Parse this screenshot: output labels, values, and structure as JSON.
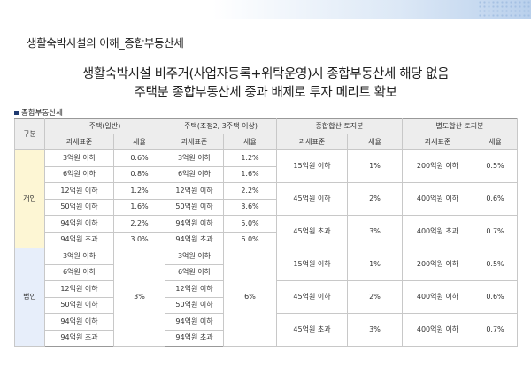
{
  "page_title": "생활숙박시설의 이해_종합부동산세",
  "headline": {
    "line1": "생활숙박시설 비주거(사업자등록+위탁운영)시 종합부동산세 해당 없음",
    "line2": "주택분 종합부동산세 중과 배제로 투자 메리트 확보"
  },
  "section_label": "종합부동산세",
  "colors": {
    "individual_group": "#fdf6d4",
    "corporate_group": "#e7eefa",
    "header_bg": "#ededed",
    "bullet": "#1f3a70"
  },
  "table": {
    "group_header": "구분",
    "col_groups": [
      "주택(일반)",
      "주택(조정2, 3주택 이상)",
      "종합합산 토지분",
      "별도합산 토지분"
    ],
    "sub_headers": {
      "h_base": "과세표준",
      "h_rate": "세율",
      "h2_base": "과세표준",
      "h2_rate": "세율",
      "land_base": "과세표준",
      "land_rate": "세율",
      "sep_base": "과세표준",
      "sep_rate": "세율"
    },
    "individual": {
      "label": "개인",
      "house_general": [
        {
          "base": "3억원 이하",
          "rate": "0.6%"
        },
        {
          "base": "6억원 이하",
          "rate": "0.8%"
        },
        {
          "base": "12억원 이하",
          "rate": "1.2%"
        },
        {
          "base": "50억원 이하",
          "rate": "1.6%"
        },
        {
          "base": "94억원 이하",
          "rate": "2.2%"
        },
        {
          "base": "94억원 초과",
          "rate": "3.0%"
        }
      ],
      "house_multi": [
        {
          "base": "3억원 이하",
          "rate": "1.2%"
        },
        {
          "base": "6억원 이하",
          "rate": "1.6%"
        },
        {
          "base": "12억원 이하",
          "rate": "2.2%"
        },
        {
          "base": "50억원 이하",
          "rate": "3.6%"
        },
        {
          "base": "94억원 이하",
          "rate": "5.0%"
        },
        {
          "base": "94억원 초과",
          "rate": "6.0%"
        }
      ],
      "land_comprehensive": [
        {
          "base": "15억원 이하",
          "rate": "1%"
        },
        {
          "base": "45억원 이하",
          "rate": "2%"
        },
        {
          "base": "45억원 초과",
          "rate": "3%"
        }
      ],
      "land_separate": [
        {
          "base": "200억원 이하",
          "rate": "0.5%"
        },
        {
          "base": "400억원 이하",
          "rate": "0.6%"
        },
        {
          "base": "400억원 초과",
          "rate": "0.7%"
        }
      ]
    },
    "corporate": {
      "label": "법인",
      "house_general_bases": [
        "3억원 이하",
        "6억원 이하",
        "12억원 이하",
        "50억원 이하",
        "94억원 이하",
        "94억원 초과"
      ],
      "house_general_rate": "3%",
      "house_multi_bases": [
        "3억원 이하",
        "6억원 이하",
        "12억원 이하",
        "50억원 이하",
        "94억원 이하",
        "94억원 초과"
      ],
      "house_multi_rate": "6%",
      "land_comprehensive": [
        {
          "base": "15억원 이하",
          "rate": "1%"
        },
        {
          "base": "45억원 이하",
          "rate": "2%"
        },
        {
          "base": "45억원 초과",
          "rate": "3%"
        }
      ],
      "land_separate": [
        {
          "base": "200억원 이하",
          "rate": "0.5%"
        },
        {
          "base": "400억원 이하",
          "rate": "0.6%"
        },
        {
          "base": "400억원 이하",
          "rate": "0.7%"
        }
      ]
    }
  }
}
